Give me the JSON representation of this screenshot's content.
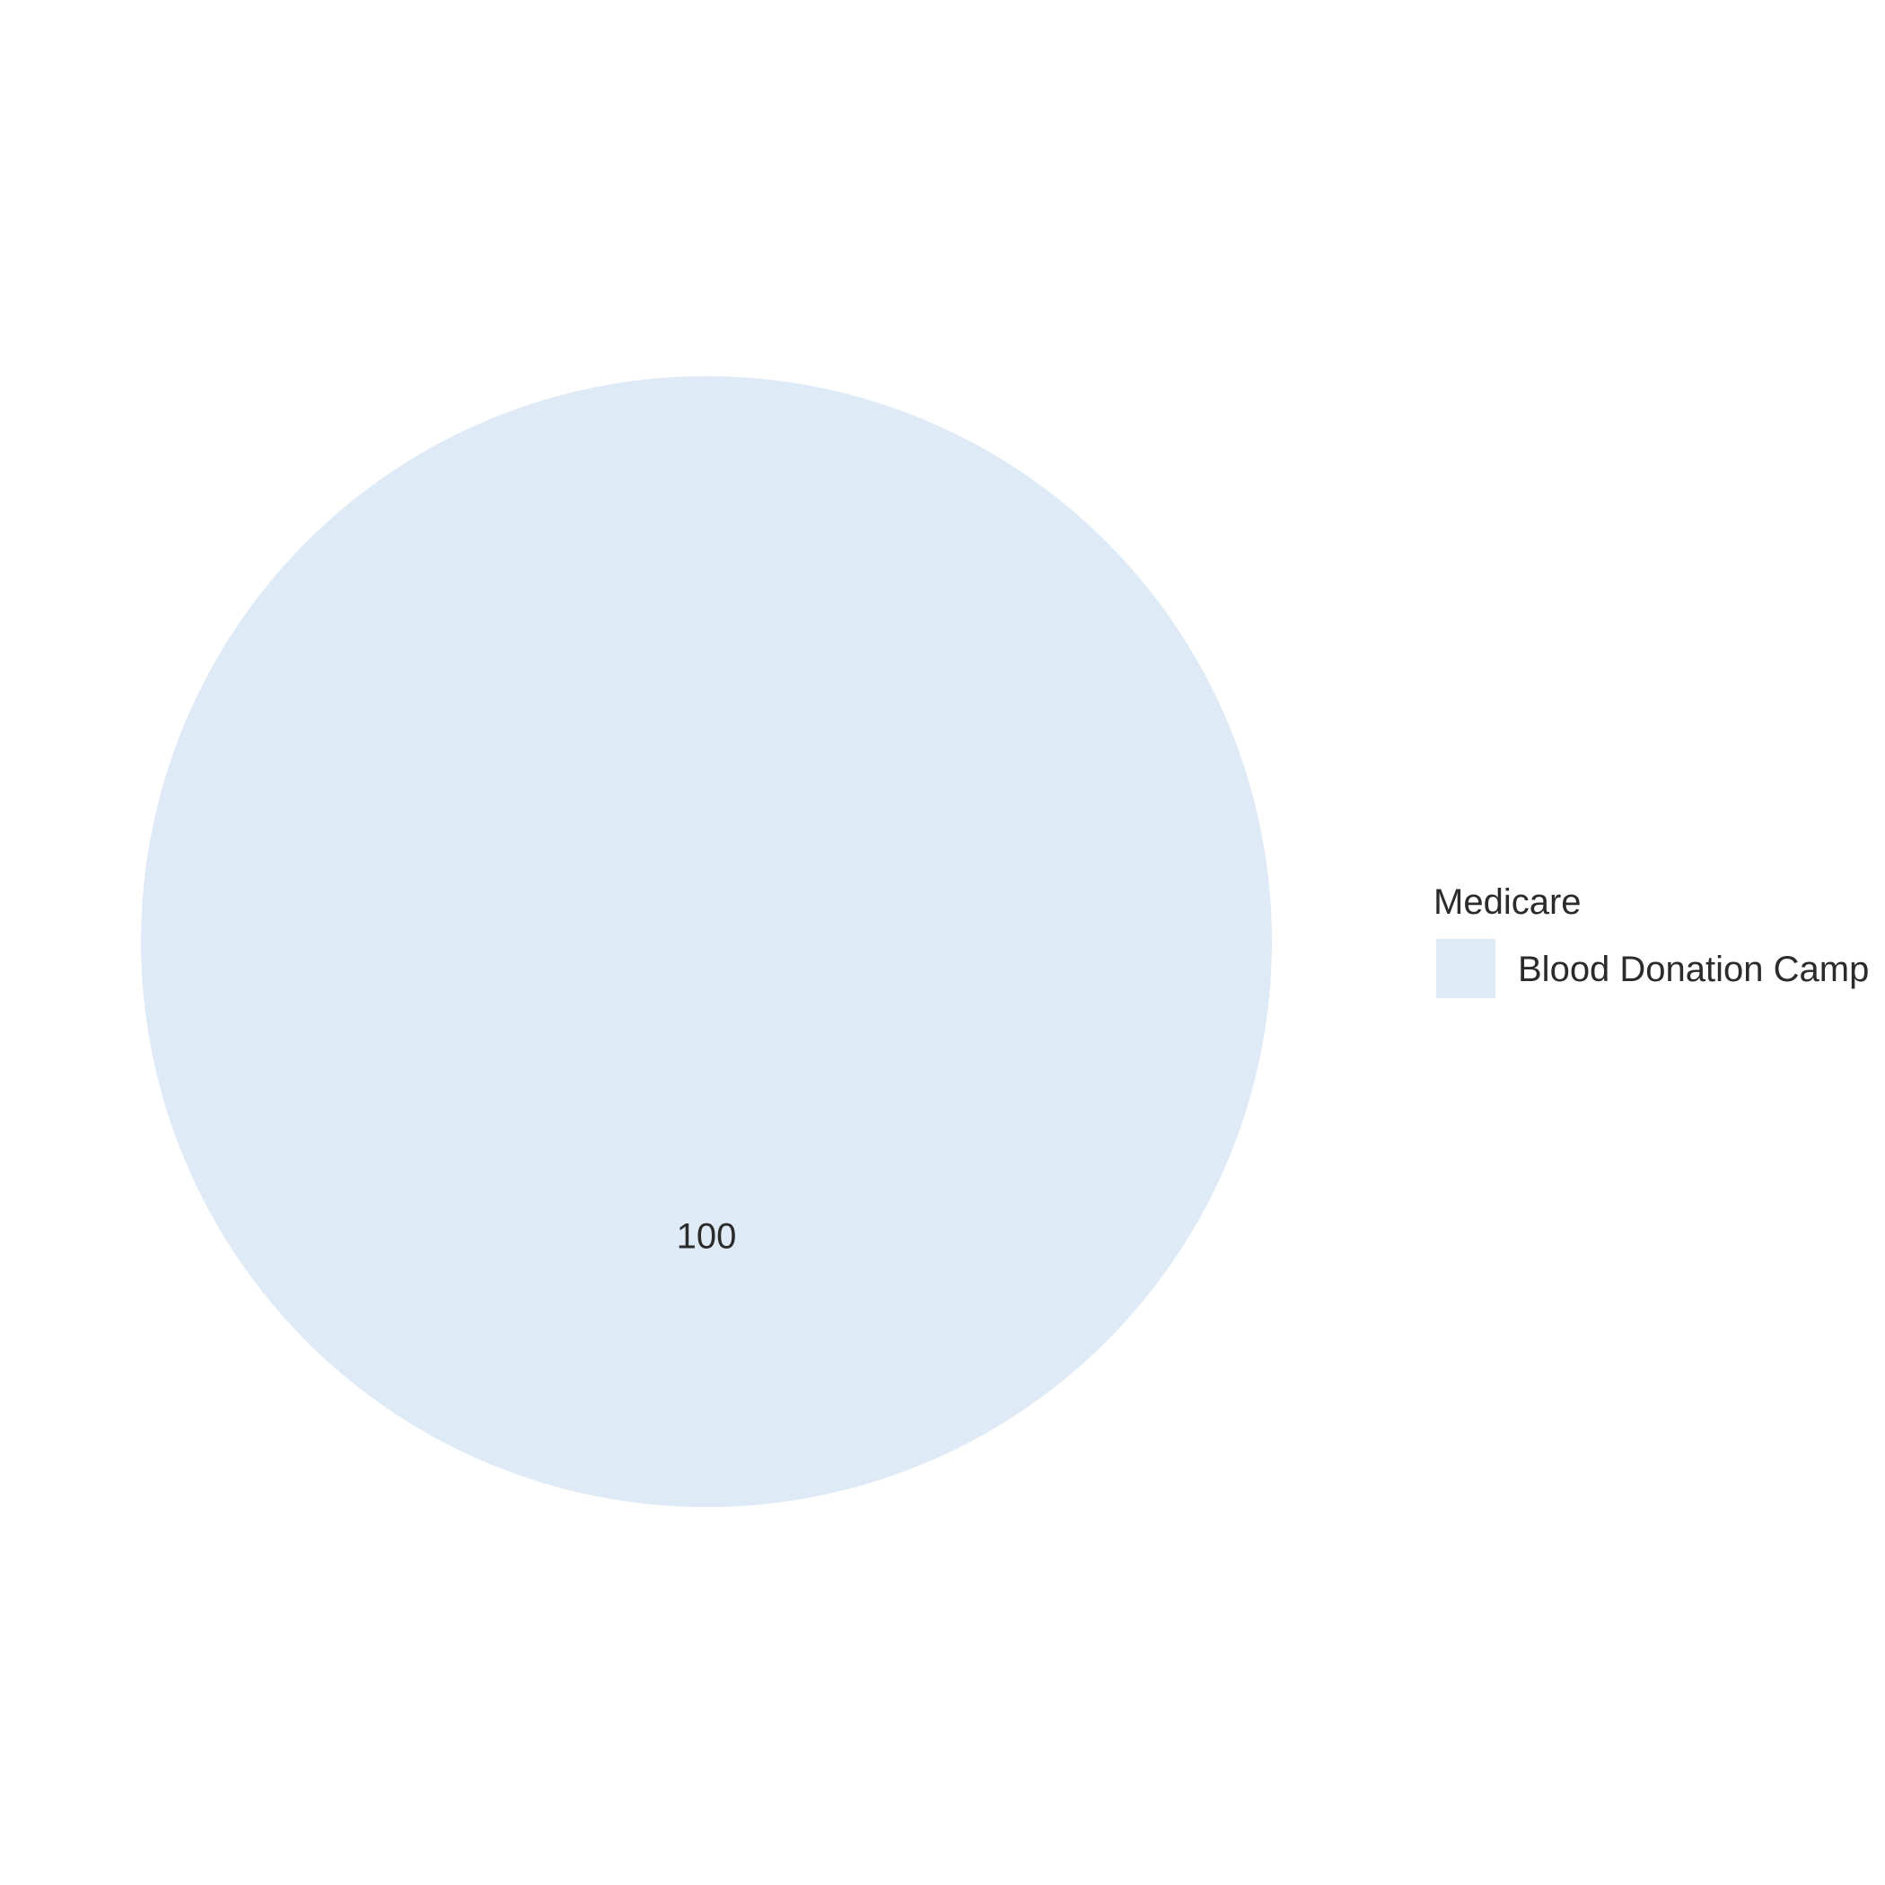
{
  "chart_data": {
    "type": "pie",
    "categories": [
      "Blood Donation Camp"
    ],
    "values": [
      100
    ],
    "data_labels": [
      "100"
    ],
    "legend": {
      "title": "Medicare",
      "position": "right",
      "entries": [
        "Blood Donation Camp"
      ]
    },
    "colors": [
      "#deeaf6"
    ]
  }
}
